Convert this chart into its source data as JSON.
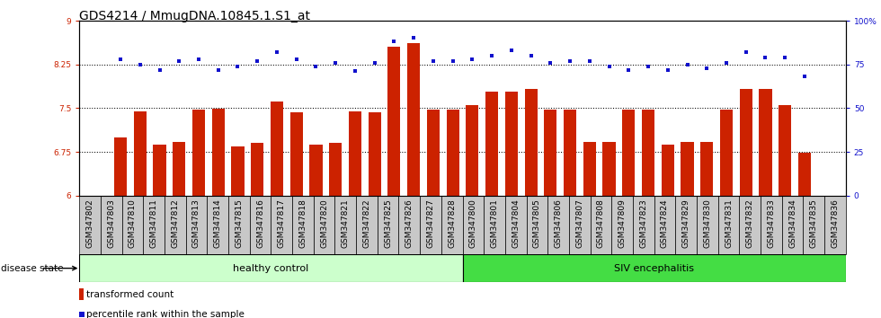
{
  "title": "GDS4214 / MmugDNA.10845.1.S1_at",
  "samples": [
    "GSM347802",
    "GSM347803",
    "GSM347810",
    "GSM347811",
    "GSM347812",
    "GSM347813",
    "GSM347814",
    "GSM347815",
    "GSM347816",
    "GSM347817",
    "GSM347818",
    "GSM347820",
    "GSM347821",
    "GSM347822",
    "GSM347825",
    "GSM347826",
    "GSM347827",
    "GSM347828",
    "GSM347800",
    "GSM347801",
    "GSM347804",
    "GSM347805",
    "GSM347806",
    "GSM347807",
    "GSM347808",
    "GSM347809",
    "GSM347823",
    "GSM347824",
    "GSM347829",
    "GSM347830",
    "GSM347831",
    "GSM347832",
    "GSM347833",
    "GSM347834",
    "GSM347835",
    "GSM347836"
  ],
  "bar_values": [
    7.0,
    7.45,
    6.88,
    6.92,
    7.47,
    7.49,
    6.85,
    6.9,
    7.62,
    7.43,
    6.87,
    6.9,
    7.45,
    7.43,
    8.56,
    8.62,
    7.47,
    7.47,
    7.55,
    7.78,
    7.78,
    7.83,
    7.47,
    7.47,
    6.92,
    6.92,
    7.47,
    7.47,
    6.87,
    6.92,
    6.92,
    7.47,
    7.83,
    7.83,
    7.55,
    6.73
  ],
  "dot_values": [
    78,
    75,
    72,
    77,
    78,
    72,
    74,
    77,
    82,
    78,
    74,
    76,
    71,
    76,
    88,
    90,
    77,
    77,
    78,
    80,
    83,
    80,
    76,
    77,
    77,
    74,
    72,
    74,
    72,
    75,
    73,
    76,
    82,
    79,
    79,
    68
  ],
  "group1_label": "healthy control",
  "group2_label": "SIV encephalitis",
  "group1_count": 18,
  "group2_count": 18,
  "ylim_left": [
    6,
    9
  ],
  "ylim_right": [
    0,
    100
  ],
  "yticks_left": [
    6,
    6.75,
    7.5,
    8.25,
    9
  ],
  "yticks_right": [
    0,
    25,
    50,
    75,
    100
  ],
  "ytick_right_labels": [
    "0",
    "25",
    "50",
    "75",
    "100%"
  ],
  "hlines": [
    6.75,
    7.5,
    8.25
  ],
  "bar_color": "#cc2200",
  "dot_color": "#1111cc",
  "group1_bg": "#ccffcc",
  "group2_bg": "#44dd44",
  "tick_bg_color": "#c8c8c8",
  "legend_bar_label": "transformed count",
  "legend_dot_label": "percentile rank within the sample",
  "disease_state_label": "disease state",
  "title_fontsize": 10,
  "tick_fontsize": 6.5,
  "bar_width": 0.65
}
